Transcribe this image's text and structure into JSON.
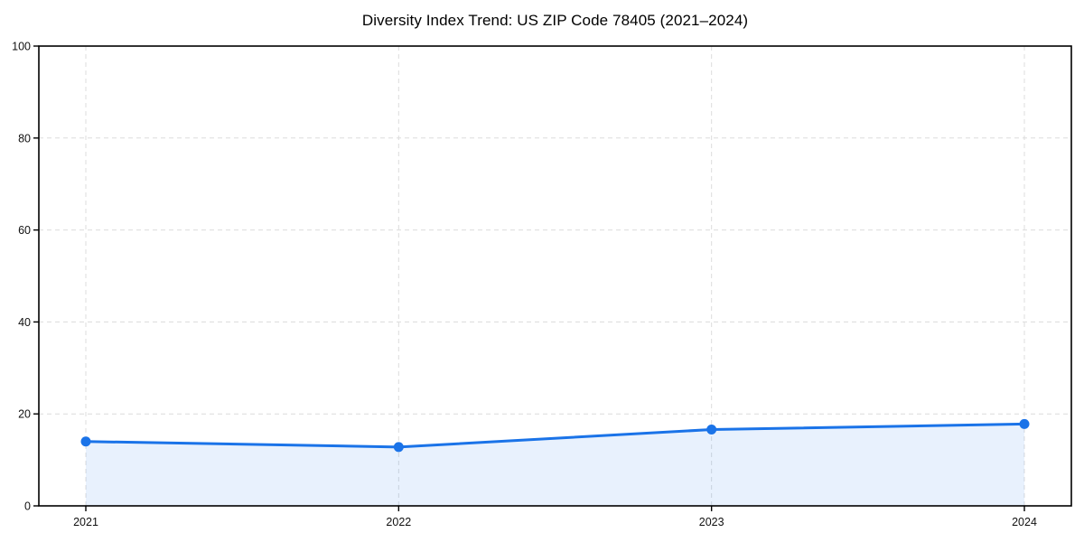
{
  "chart_data": {
    "type": "area",
    "title": "Diversity Index Trend: US ZIP Code 78405 (2021–2024)",
    "categories": [
      "2021",
      "2022",
      "2023",
      "2024"
    ],
    "series": [
      {
        "name": "Diversity Index",
        "values": [
          14.0,
          12.8,
          16.6,
          17.8
        ]
      }
    ],
    "xlabel": "",
    "ylabel": "",
    "ylim": [
      0,
      100
    ],
    "yticks": [
      0,
      20,
      40,
      60,
      80,
      100
    ],
    "grid": true,
    "grid_style": "dashed",
    "legend": false,
    "colors": {
      "line": "#1a73e8",
      "marker": "#1a73e8",
      "fill": "rgba(26,115,232,0.10)",
      "grid": "#dcdcdc",
      "axis": "#000000",
      "tick_label": "#111111"
    }
  }
}
